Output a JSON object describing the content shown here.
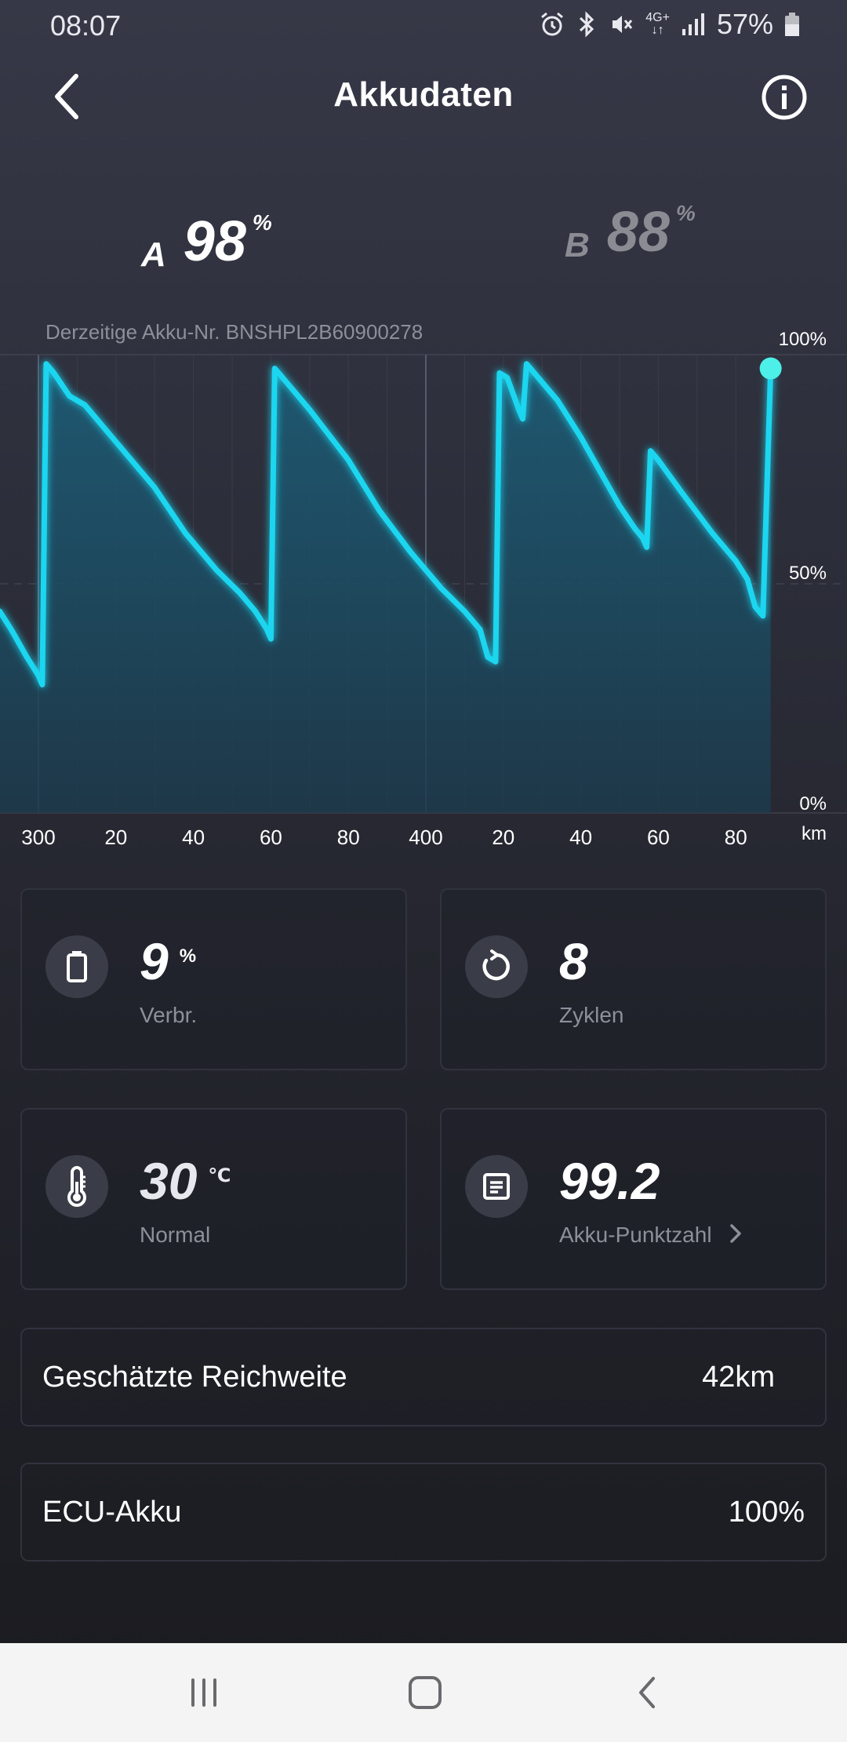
{
  "status_bar": {
    "time": "08:07",
    "network": "4G+",
    "battery_percent": "57%",
    "icons": [
      "alarm-icon",
      "bluetooth-icon",
      "mute-vibrate-icon",
      "network-4g-icon",
      "signal-icon",
      "battery-icon"
    ]
  },
  "header": {
    "title": "Akkudaten",
    "back_icon": "chevron-left-icon",
    "info_icon": "info-icon"
  },
  "batteries": {
    "a": {
      "letter": "A",
      "value": "98",
      "unit": "%"
    },
    "b": {
      "letter": "B",
      "value": "88",
      "unit": "%"
    }
  },
  "battery_number": "Derzeitige Akku-Nr. BNSHPL2B60900278",
  "chart_data": {
    "type": "area",
    "ylabel_ticks": [
      "100%",
      "50%",
      "0%"
    ],
    "ylim": [
      0,
      100
    ],
    "xunit": "km",
    "xlim": [
      300,
      495
    ],
    "x_tick_labels": [
      "300",
      "20",
      "40",
      "60",
      "80",
      "400",
      "20",
      "40",
      "60",
      "80"
    ],
    "x_ticks": [
      300,
      320,
      340,
      360,
      380,
      400,
      420,
      440,
      460,
      480
    ],
    "series": [
      {
        "points": [
          [
            290,
            44
          ],
          [
            293,
            40
          ],
          [
            297,
            34
          ],
          [
            300,
            30
          ],
          [
            301,
            28
          ],
          [
            302,
            98
          ],
          [
            304,
            96
          ],
          [
            308,
            91
          ],
          [
            312,
            89
          ],
          [
            320,
            81
          ],
          [
            330,
            71
          ],
          [
            338,
            61
          ],
          [
            346,
            53
          ],
          [
            352,
            48
          ],
          [
            356,
            44
          ],
          [
            359,
            40
          ],
          [
            360,
            38
          ],
          [
            361,
            97
          ],
          [
            364,
            94
          ],
          [
            370,
            88
          ],
          [
            380,
            77
          ],
          [
            388,
            66
          ],
          [
            396,
            57
          ],
          [
            404,
            49
          ],
          [
            410,
            44
          ],
          [
            414,
            40
          ],
          [
            416,
            34
          ],
          [
            418,
            33
          ],
          [
            419,
            96
          ],
          [
            421,
            95
          ],
          [
            424,
            88
          ],
          [
            425,
            86
          ],
          [
            426,
            98
          ],
          [
            428,
            96
          ],
          [
            434,
            90
          ],
          [
            440,
            82
          ],
          [
            446,
            73
          ],
          [
            450,
            67
          ],
          [
            454,
            62
          ],
          [
            456,
            60
          ],
          [
            457,
            58
          ],
          [
            458,
            79
          ],
          [
            460,
            77
          ],
          [
            466,
            70
          ],
          [
            474,
            61
          ],
          [
            480,
            55
          ],
          [
            483,
            51
          ],
          [
            485,
            45
          ],
          [
            486,
            44
          ],
          [
            487,
            43
          ],
          [
            489,
            97
          ]
        ]
      }
    ],
    "line_color": "#1ad6f0",
    "fill_color": "#1b5f7a",
    "grid": true
  },
  "stats": {
    "consumption": {
      "value": "9",
      "unit": "%",
      "label": "Verbr.",
      "icon": "battery-icon"
    },
    "cycles": {
      "value": "8",
      "label": "Zyklen",
      "icon": "refresh-icon"
    },
    "temperature": {
      "value": "30",
      "unit": "℃",
      "label": "Normal",
      "icon": "thermometer-icon"
    },
    "score": {
      "value": "99.2",
      "label": "Akku-Punktzahl",
      "icon": "report-icon"
    }
  },
  "rows": {
    "range": {
      "label": "Geschätzte Reichweite",
      "value": "42km"
    },
    "ecu": {
      "label": "ECU-Akku",
      "value": "100%"
    }
  },
  "nav": {
    "recents_icon": "recents-icon",
    "home_icon": "home-icon",
    "back_icon": "back-icon"
  }
}
